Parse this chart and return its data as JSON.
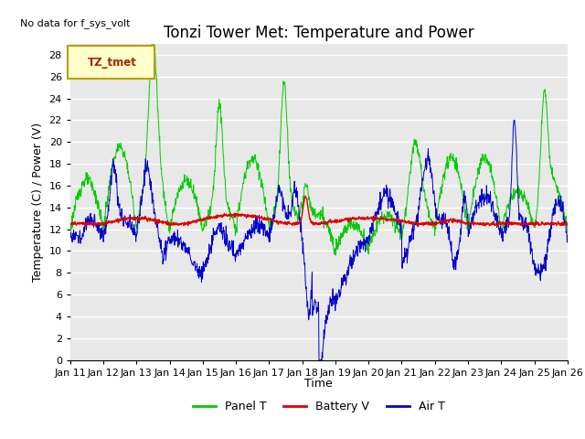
{
  "title": "Tonzi Tower Met: Temperature and Power",
  "ylabel": "Temperature (C) / Power (V)",
  "xlabel": "Time",
  "top_left_text": "No data for f_sys_volt",
  "legend_label": "TZ_tmet",
  "ylim": [
    0,
    29
  ],
  "yticks": [
    0,
    2,
    4,
    6,
    8,
    10,
    12,
    14,
    16,
    18,
    20,
    22,
    24,
    26,
    28
  ],
  "xtick_labels": [
    "Jan 11",
    "Jan 12",
    "Jan 13",
    "Jan 14",
    "Jan 15",
    "Jan 16",
    "Jan 17",
    "Jan 18",
    "Jan 19",
    "Jan 20",
    "Jan 21",
    "Jan 22",
    "Jan 23",
    "Jan 24",
    "Jan 25",
    "Jan 26"
  ],
  "panel_color": "#00cc00",
  "battery_color": "#dd0000",
  "air_color": "#0000cc",
  "plot_bg": "#e8e8e8",
  "title_fontsize": 12,
  "label_fontsize": 9,
  "tick_fontsize": 8,
  "legend_box_edgecolor": "#b8a000",
  "legend_box_bg": "#ffffcc",
  "legend_text_color": "#aa2200"
}
